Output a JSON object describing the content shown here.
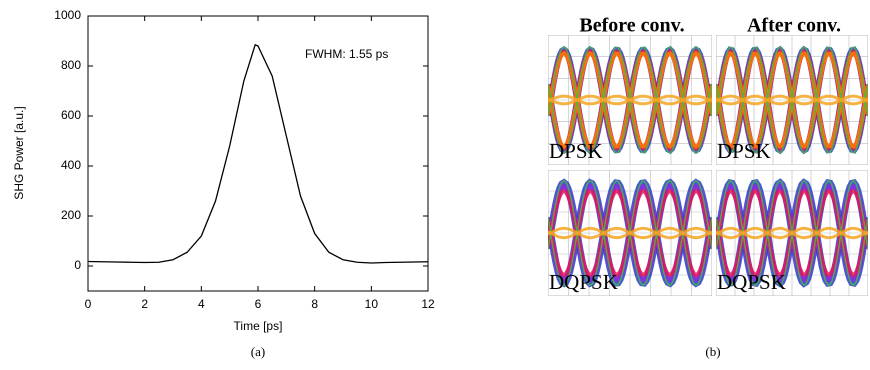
{
  "chart_data": {
    "type": "line",
    "xlabel": "Time [ps]",
    "ylabel": "SHG Power [a.u.]",
    "annotation": "FWHM: 1.55 ps",
    "caption": "(a)",
    "x": [
      0,
      0.5,
      1,
      1.5,
      2,
      2.5,
      3,
      3.5,
      4,
      4.5,
      5,
      5.5,
      5.9,
      6,
      6.5,
      7,
      7.5,
      8,
      8.5,
      9,
      9.5,
      10,
      10.5,
      11,
      11.5,
      12
    ],
    "values": [
      18,
      17,
      16,
      15,
      14,
      15,
      25,
      55,
      120,
      260,
      480,
      740,
      885,
      880,
      760,
      520,
      280,
      130,
      55,
      25,
      15,
      12,
      14,
      15,
      16,
      17
    ],
    "color": "#000000",
    "xlim": [
      0,
      12
    ],
    "xticks": [
      0,
      2,
      4,
      6,
      8,
      10,
      12
    ],
    "ylim": [
      -100,
      1000
    ],
    "yticks": [
      0,
      200,
      400,
      600,
      800,
      1000
    ]
  },
  "panel_b": {
    "columns": [
      "Before conv.",
      "After conv."
    ],
    "rows": [
      "DPSK",
      "DQPSK"
    ],
    "caption": "(b)"
  }
}
